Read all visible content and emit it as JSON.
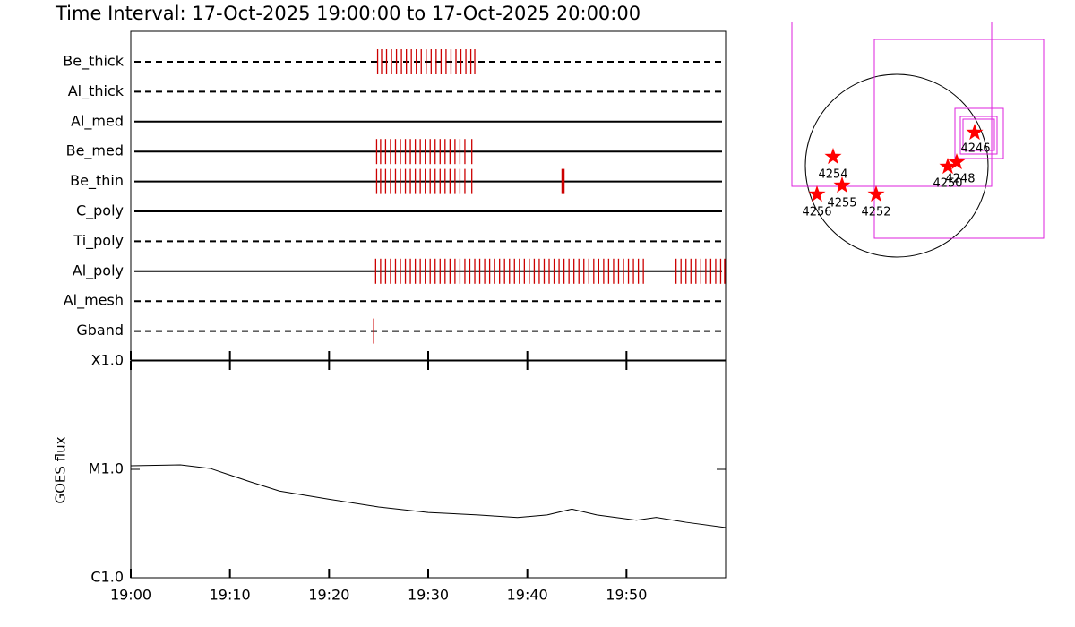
{
  "chart_data": [
    {
      "type": "timeline",
      "title": "Time Interval: 17-Oct-2025 19:00:00 to 17-Oct-2025 20:00:00",
      "xlim": [
        0,
        60
      ],
      "series": [
        {
          "name": "Be_thick",
          "style": "dashed",
          "color": "#cc0000",
          "times": [
            24.9,
            25.3,
            25.8,
            26.3,
            26.8,
            27.3,
            27.8,
            28.3,
            28.8,
            29.3,
            29.8,
            30.3,
            30.8,
            31.3,
            31.8,
            32.3,
            32.8,
            33.3,
            33.8,
            34.3,
            34.7
          ]
        },
        {
          "name": "Al_thick",
          "style": "dashed",
          "color": "#cc0000",
          "times": []
        },
        {
          "name": "Al_med",
          "style": "solid",
          "color": "#cc0000",
          "times": []
        },
        {
          "name": "Be_med",
          "style": "solid",
          "color": "#cc0000",
          "times": [
            24.8,
            25.2,
            25.7,
            26.2,
            26.7,
            27.2,
            27.7,
            28.2,
            28.7,
            29.2,
            29.7,
            30.2,
            30.7,
            31.2,
            31.7,
            32.2,
            32.7,
            33.2,
            33.7,
            34.4
          ]
        },
        {
          "name": "Be_thin",
          "style": "solid",
          "color": "#cc0000",
          "times": [
            24.8,
            25.2,
            25.7,
            26.2,
            26.7,
            27.2,
            27.7,
            28.2,
            28.7,
            29.2,
            29.7,
            30.2,
            30.7,
            31.2,
            31.7,
            32.2,
            32.7,
            33.2,
            33.7,
            34.4,
            43.5,
            43.6,
            43.7
          ]
        },
        {
          "name": "C_poly",
          "style": "solid",
          "color": "#cc0000",
          "times": []
        },
        {
          "name": "Ti_poly",
          "style": "dashed",
          "color": "#cc0000",
          "times": []
        },
        {
          "name": "Al_poly",
          "style": "solid",
          "color": "#cc0000",
          "times": [
            24.7,
            25.2,
            25.7,
            26.2,
            26.7,
            27.2,
            27.7,
            28.2,
            28.7,
            29.2,
            29.7,
            30.2,
            30.7,
            31.2,
            31.7,
            32.2,
            32.7,
            33.2,
            33.7,
            34.2,
            34.7,
            35.2,
            35.7,
            36.2,
            36.7,
            37.2,
            37.7,
            38.2,
            38.7,
            39.2,
            39.7,
            40.2,
            40.7,
            41.2,
            41.7,
            42.2,
            42.7,
            43.2,
            43.7,
            44.2,
            44.7,
            45.2,
            45.7,
            46.2,
            46.7,
            47.2,
            47.7,
            48.2,
            48.7,
            49.2,
            49.7,
            50.2,
            50.7,
            51.2,
            51.7,
            55.0,
            55.5,
            56.0,
            56.5,
            57.0,
            57.5,
            58.0,
            58.5,
            59.0,
            59.5,
            59.9
          ]
        },
        {
          "name": "Al_mesh",
          "style": "dashed",
          "color": "#cc0000",
          "times": []
        },
        {
          "name": "Gband",
          "style": "dashed",
          "color": "#cc0000",
          "times": [
            24.5
          ]
        }
      ]
    },
    {
      "type": "line",
      "ylabel": "GOES flux",
      "log": true,
      "color": "#000000",
      "x": [
        0,
        5,
        8,
        12,
        15,
        20,
        25,
        30,
        35,
        39,
        42,
        44.5,
        47,
        51,
        53,
        56,
        60
      ],
      "values": [
        1.08e-05,
        1.1e-05,
        1.02e-05,
        7.7e-06,
        6.3e-06,
        5.3e-06,
        4.5e-06,
        4e-06,
        3.8e-06,
        3.6e-06,
        3.8e-06,
        4.3e-06,
        3.8e-06,
        3.4e-06,
        3.6e-06,
        3.25e-06,
        2.9e-06
      ],
      "xlim": [
        0,
        60
      ],
      "xticks": [
        {
          "value": 0,
          "label": "19:00"
        },
        {
          "value": 10,
          "label": "19:10"
        },
        {
          "value": 20,
          "label": "19:20"
        },
        {
          "value": 30,
          "label": "19:30"
        },
        {
          "value": 40,
          "label": "19:40"
        },
        {
          "value": 50,
          "label": "19:50"
        }
      ],
      "ylim": [
        1e-06,
        0.0001
      ],
      "yticks": [
        {
          "value": 1e-06,
          "label": "C1.0"
        },
        {
          "value": 1e-05,
          "label": "M1.0"
        },
        {
          "value": 0.0001,
          "label": "X1.0"
        }
      ]
    },
    {
      "type": "map",
      "regions": [
        {
          "label": "4246"
        },
        {
          "label": "4254"
        },
        {
          "label": "4250"
        },
        {
          "label": "4248"
        },
        {
          "label": "4255"
        },
        {
          "label": "4256"
        },
        {
          "label": "4252"
        }
      ]
    }
  ]
}
